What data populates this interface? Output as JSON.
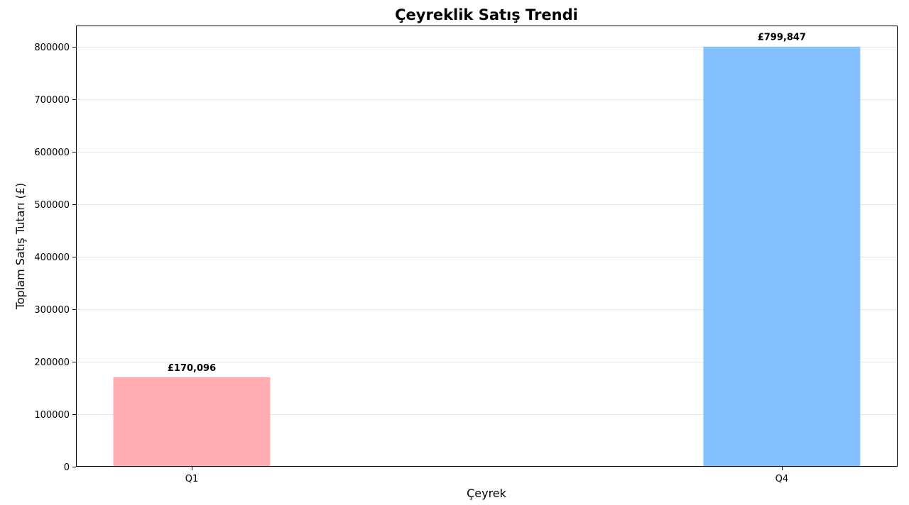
{
  "chart_data": {
    "type": "bar",
    "title": "Çeyreklik Satış Trendi",
    "xlabel": "Çeyrek",
    "ylabel": "Toplam Satış Tutarı (£)",
    "categories": [
      "Q1",
      "Q4"
    ],
    "values": [
      170096,
      799847
    ],
    "data_labels": [
      "£170,096",
      "£799,847"
    ],
    "colors": [
      "#ffadb0",
      "#85c1ff"
    ],
    "ylim": [
      0,
      840000
    ],
    "yticks": [
      0,
      100000,
      200000,
      300000,
      400000,
      500000,
      600000,
      700000,
      800000
    ],
    "ytick_labels": [
      "0",
      "100000",
      "200000",
      "300000",
      "400000",
      "500000",
      "600000",
      "700000",
      "800000"
    ],
    "grid": true,
    "legend": "none"
  }
}
